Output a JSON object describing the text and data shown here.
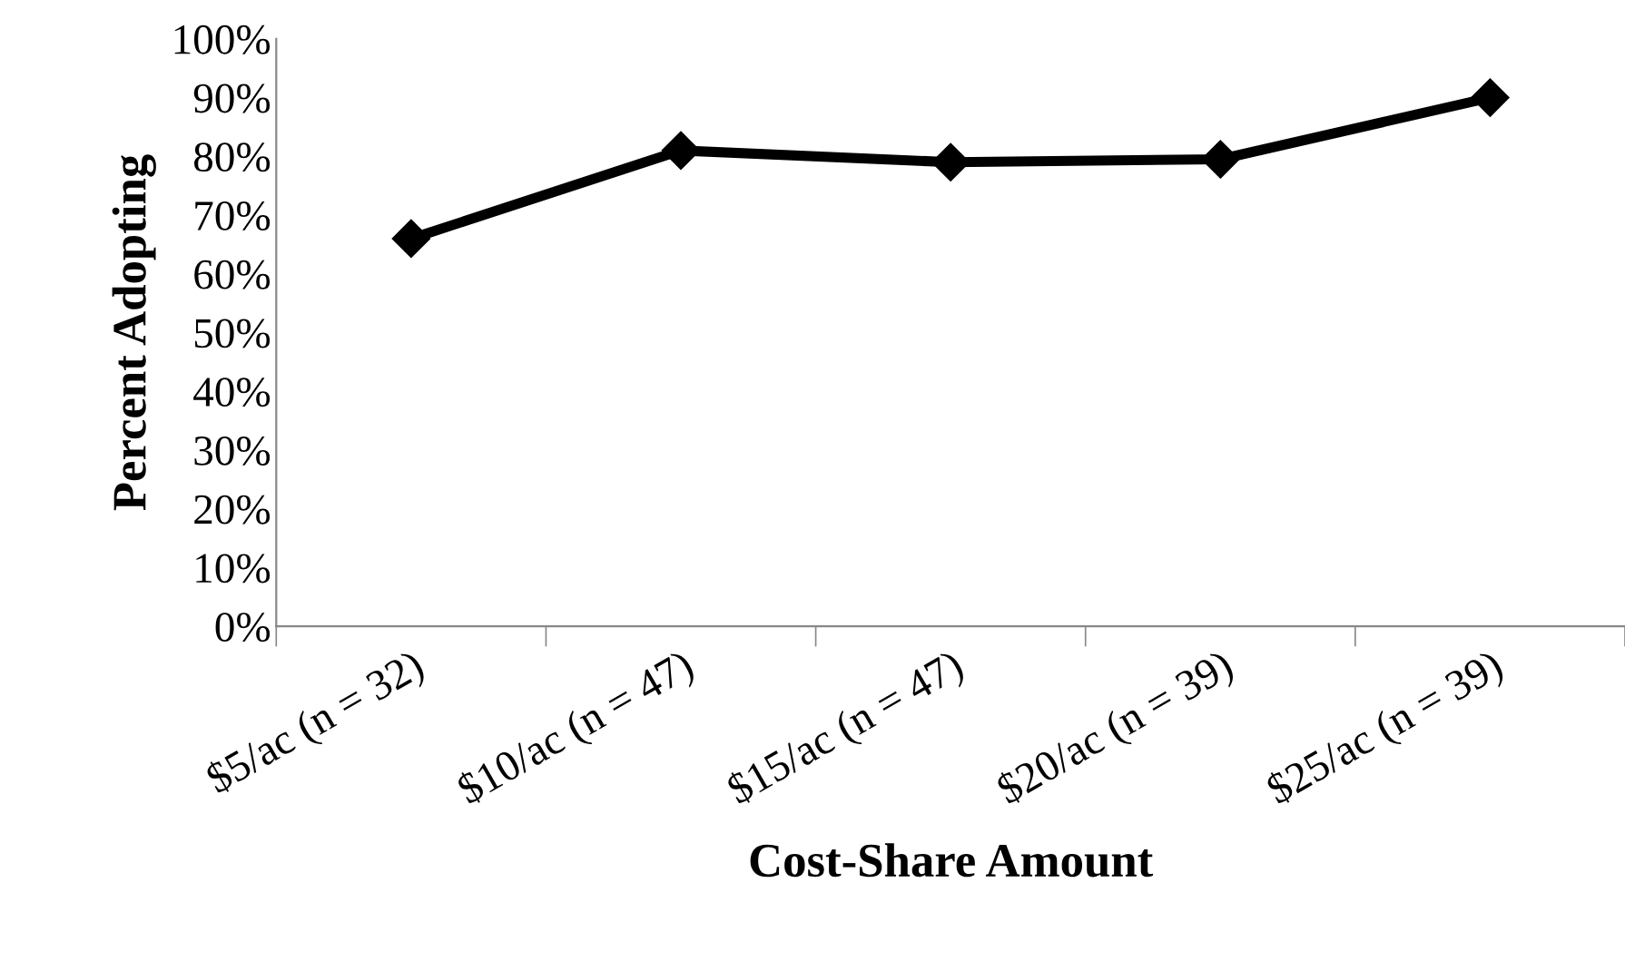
{
  "chart_data": {
    "type": "line",
    "xlabel": "Cost-Share Amount",
    "ylabel": "Percent Adopting",
    "categories": [
      "$5/ac (n = 32)",
      "$10/ac (n = 47)",
      "$15/ac (n = 47)",
      "$20/ac (n = 39)",
      "$25/ac (n = 39)"
    ],
    "series": [
      {
        "color": "#000000",
        "values": [
          66,
          81,
          79,
          79.5,
          90
        ]
      }
    ],
    "ylim": [
      0,
      100
    ],
    "yticks": [
      {
        "value": 0,
        "label": "0%"
      },
      {
        "value": 10,
        "label": "10%"
      },
      {
        "value": 20,
        "label": "20%"
      },
      {
        "value": 30,
        "label": "30%"
      },
      {
        "value": 40,
        "label": "40%"
      },
      {
        "value": 50,
        "label": "50%"
      },
      {
        "value": 60,
        "label": "60%"
      },
      {
        "value": 70,
        "label": "70%"
      },
      {
        "value": 80,
        "label": "80%"
      },
      {
        "value": 90,
        "label": "90%"
      },
      {
        "value": 100,
        "label": "100%"
      }
    ],
    "marker": "diamond",
    "line_style": "solid"
  }
}
